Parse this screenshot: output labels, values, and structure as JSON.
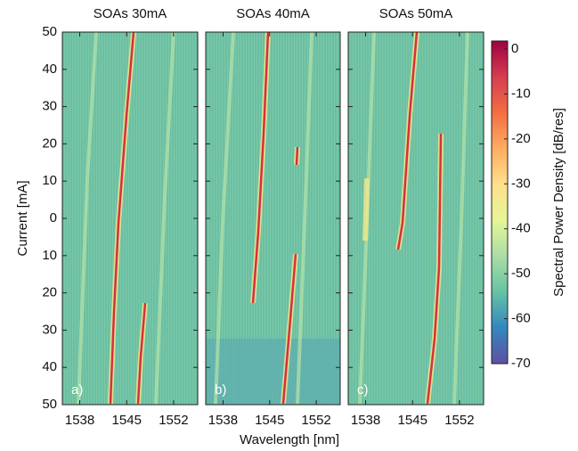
{
  "chart_data": {
    "type": "heatmap",
    "panels": [
      {
        "title": "SOAs 30mA",
        "label": "a)"
      },
      {
        "title": "SOAs 40mA",
        "label": "b)"
      },
      {
        "title": "SOAs 50mA",
        "label": "c)"
      }
    ],
    "xlabel": "Wavelength [nm]",
    "ylabel": "Current [mA]",
    "colorbar_label": "Spectral Power Density [dB/res]",
    "xlim": [
      1535.4,
      1555.6
    ],
    "xticks": [
      1538,
      1545,
      1552
    ],
    "ylim": [
      -50,
      50
    ],
    "yticks": [
      50,
      40,
      30,
      20,
      10,
      0,
      {
        "value": -10,
        "label": "10"
      },
      {
        "value": -20,
        "label": "20"
      },
      {
        "value": -30,
        "label": "30"
      },
      {
        "value": -40,
        "label": "40"
      },
      {
        "value": -50,
        "label": "50"
      }
    ],
    "clim": [
      -70,
      0
    ],
    "cticks": [
      0,
      -10,
      -20,
      -30,
      -40,
      -50,
      -60,
      -70
    ],
    "colormap": [
      "#5e4fa2",
      "#3288bd",
      "#66c2a5",
      "#abdda4",
      "#e6f598",
      "#fee08b",
      "#fdae61",
      "#f46d43",
      "#d53e4f",
      "#9e0142"
    ]
  }
}
